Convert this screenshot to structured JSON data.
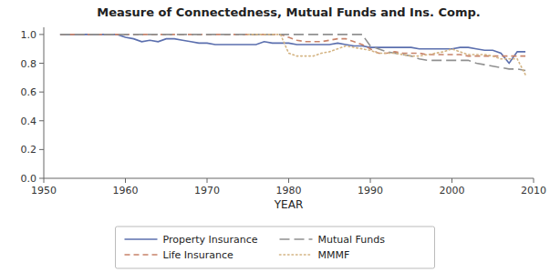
{
  "chart_data": {
    "type": "line",
    "title": "Measure of Connectedness, Mutual Funds and Ins. Comp.",
    "x_label": "YEAR",
    "x": [
      1952,
      1953,
      1954,
      1955,
      1956,
      1957,
      1958,
      1959,
      1960,
      1961,
      1962,
      1963,
      1964,
      1965,
      1966,
      1967,
      1968,
      1969,
      1970,
      1971,
      1972,
      1973,
      1974,
      1975,
      1976,
      1977,
      1978,
      1979,
      1980,
      1981,
      1982,
      1983,
      1984,
      1985,
      1986,
      1987,
      1988,
      1989,
      1990,
      1991,
      1992,
      1993,
      1994,
      1995,
      1996,
      1997,
      1998,
      1999,
      2000,
      2001,
      2002,
      2003,
      2004,
      2005,
      2006,
      2007,
      2008,
      2009
    ],
    "series": [
      {
        "name": "Property Insurance",
        "color": "#5b6fae",
        "line_style": "solid",
        "values": [
          1.0,
          1.0,
          1.0,
          1.0,
          1.0,
          1.0,
          1.0,
          1.0,
          0.98,
          0.97,
          0.95,
          0.96,
          0.95,
          0.97,
          0.97,
          0.96,
          0.95,
          0.94,
          0.94,
          0.93,
          0.93,
          0.93,
          0.93,
          0.93,
          0.93,
          0.95,
          0.94,
          0.94,
          0.94,
          0.93,
          0.93,
          0.93,
          0.93,
          0.93,
          0.94,
          0.93,
          0.92,
          0.92,
          0.91,
          0.91,
          0.91,
          0.91,
          0.91,
          0.91,
          0.9,
          0.9,
          0.9,
          0.9,
          0.9,
          0.91,
          0.91,
          0.9,
          0.89,
          0.89,
          0.87,
          0.8,
          0.88,
          0.88
        ]
      },
      {
        "name": "Life Insurance",
        "color": "#c8836a",
        "line_style": "dashed",
        "values": [
          1.0,
          1.0,
          1.0,
          1.0,
          1.0,
          1.0,
          1.0,
          1.0,
          1.0,
          1.0,
          1.0,
          1.0,
          1.0,
          1.0,
          1.0,
          1.0,
          1.0,
          1.0,
          1.0,
          1.0,
          1.0,
          1.0,
          1.0,
          1.0,
          1.0,
          1.0,
          1.0,
          1.0,
          0.98,
          0.96,
          0.95,
          0.95,
          0.95,
          0.96,
          0.97,
          0.97,
          0.95,
          0.93,
          0.9,
          0.87,
          0.87,
          0.88,
          0.87,
          0.87,
          0.87,
          0.86,
          0.86,
          0.86,
          0.86,
          0.86,
          0.85,
          0.85,
          0.85,
          0.85,
          0.85,
          0.85,
          0.85,
          0.85
        ]
      },
      {
        "name": "Mutual Funds",
        "color": "#909090",
        "line_style": "long-dashed",
        "values": [
          1.0,
          1.0,
          1.0,
          1.0,
          1.0,
          1.0,
          1.0,
          1.0,
          1.0,
          1.0,
          1.0,
          1.0,
          1.0,
          1.0,
          1.0,
          1.0,
          1.0,
          1.0,
          1.0,
          1.0,
          1.0,
          1.0,
          1.0,
          1.0,
          1.0,
          1.0,
          1.0,
          1.0,
          1.0,
          1.0,
          1.0,
          1.0,
          1.0,
          1.0,
          1.0,
          1.0,
          1.0,
          1.0,
          0.92,
          0.9,
          0.88,
          0.87,
          0.86,
          0.85,
          0.83,
          0.82,
          0.82,
          0.82,
          0.82,
          0.82,
          0.82,
          0.8,
          0.79,
          0.78,
          0.77,
          0.76,
          0.76,
          0.75
        ]
      },
      {
        "name": "MMMF",
        "color": "#d4b483",
        "line_style": "dotted",
        "values": [
          null,
          null,
          null,
          null,
          null,
          null,
          null,
          null,
          null,
          null,
          null,
          null,
          null,
          null,
          null,
          null,
          null,
          null,
          null,
          null,
          null,
          null,
          null,
          1.0,
          1.0,
          1.0,
          1.0,
          1.0,
          0.87,
          0.85,
          0.85,
          0.85,
          0.87,
          0.88,
          0.9,
          0.92,
          0.91,
          0.9,
          0.89,
          0.87,
          0.87,
          0.87,
          0.86,
          0.85,
          0.85,
          0.86,
          0.87,
          0.88,
          0.9,
          0.88,
          0.86,
          0.86,
          0.86,
          0.85,
          0.83,
          0.83,
          0.83,
          0.72
        ]
      }
    ],
    "xlim": [
      1950,
      2010
    ],
    "ylim": [
      0,
      1.05
    ],
    "xticks": [
      1950,
      1960,
      1970,
      1980,
      1990,
      2000,
      2010
    ],
    "yticks": [
      {
        "value": 0,
        "label": "0.0"
      },
      0.2,
      0.4,
      0.6,
      0.8,
      {
        "value": 1.0,
        "label": "1.0"
      }
    ],
    "grid": false,
    "legend": "bottom"
  }
}
